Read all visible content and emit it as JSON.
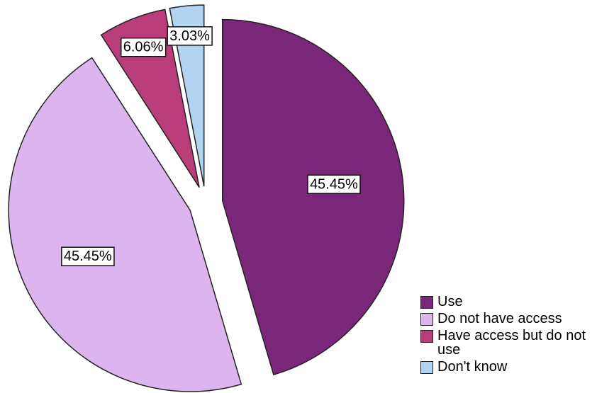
{
  "chart_data": {
    "type": "pie",
    "categories": [
      "Use",
      "Do not have access",
      "Have access but do not use",
      "Don't know"
    ],
    "values": [
      45.45,
      45.45,
      6.06,
      3.03
    ],
    "value_labels": [
      "45.45%",
      "45.45%",
      "6.06%",
      "3.03%"
    ],
    "colors": [
      "#7b2779",
      "#dcb5ef",
      "#b83d78",
      "#b3d4f0"
    ],
    "legend": "bottom-right"
  }
}
